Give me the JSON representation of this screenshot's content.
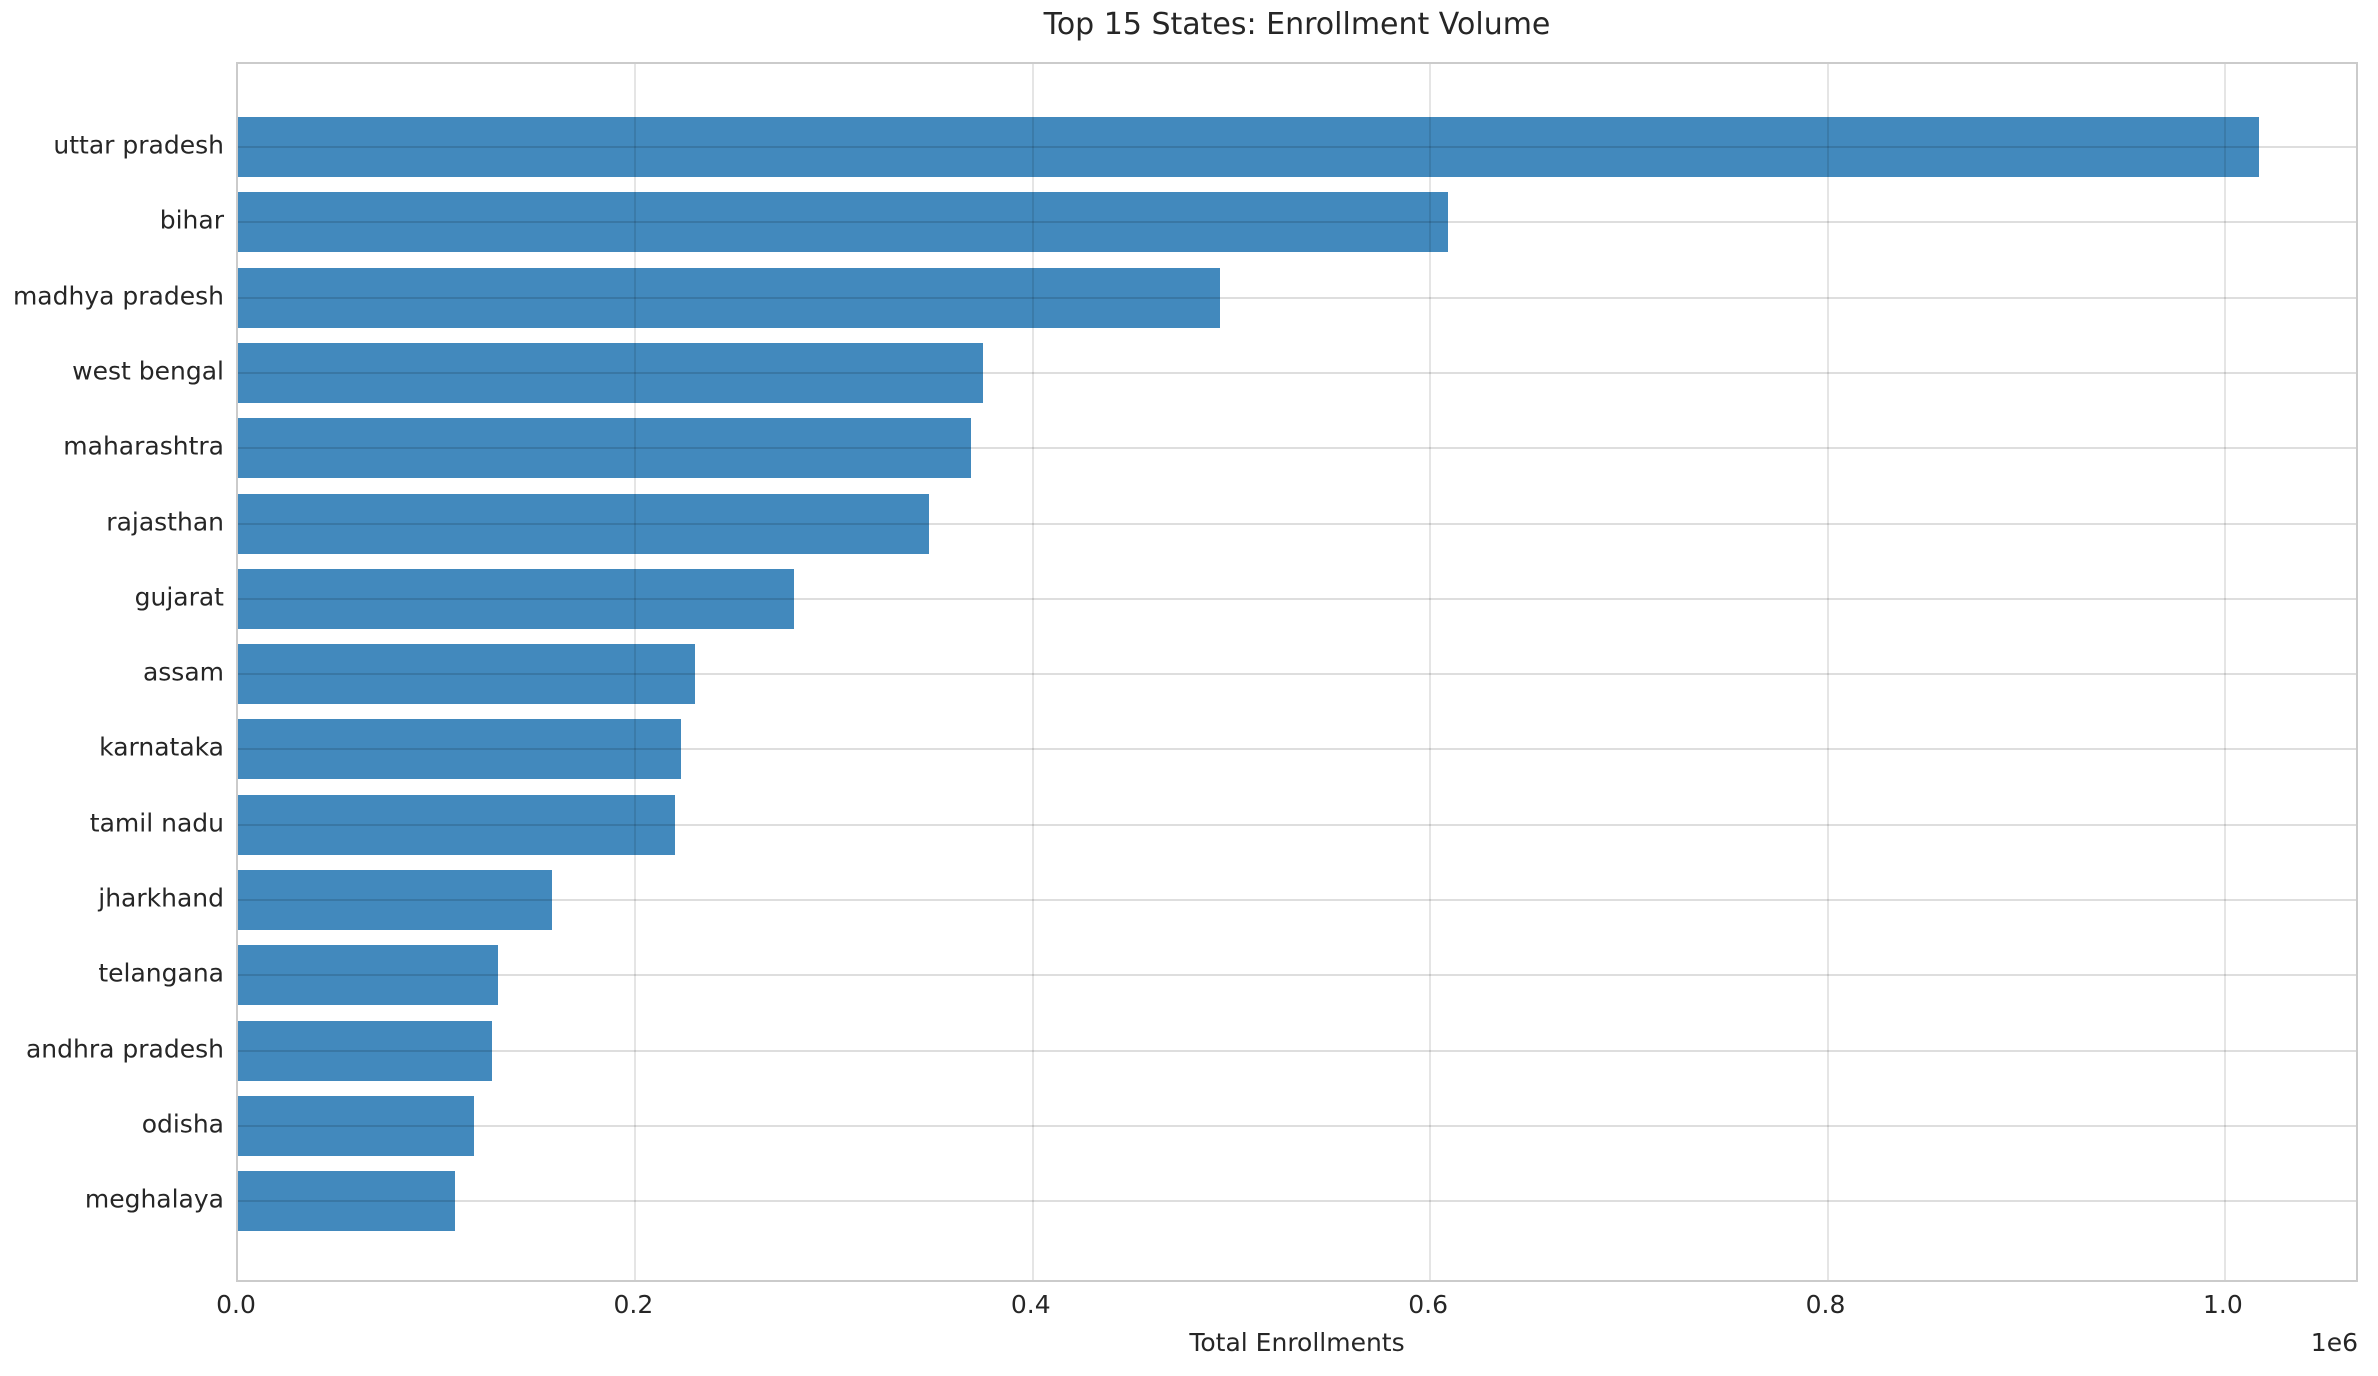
{
  "title": "Top 15 States: Enrollment Volume",
  "xlabel": "Total Enrollments",
  "axis_offset_label": "1e6",
  "colors": {
    "bar": "#4289bd",
    "grid": "#dddddd",
    "spine": "#cbcbcb",
    "text": "#262626",
    "background": "#ffffff"
  },
  "chart_data": {
    "type": "bar",
    "orientation": "horizontal",
    "title": "Top 15 States: Enrollment Volume",
    "xlabel": "Total Enrollments",
    "ylabel": "",
    "categories": [
      "uttar pradesh",
      "bihar",
      "madhya pradesh",
      "west bengal",
      "maharashtra",
      "rajasthan",
      "gujarat",
      "assam",
      "karnataka",
      "tamil nadu",
      "jharkhand",
      "telangana",
      "andhra pradesh",
      "odisha",
      "meghalaya"
    ],
    "values": [
      1017000,
      609000,
      494000,
      375000,
      369000,
      348000,
      280000,
      230000,
      223000,
      220000,
      158000,
      131000,
      128000,
      119000,
      109000
    ],
    "xlim": [
      0,
      1068000
    ],
    "xticks_1e6": [
      0.0,
      0.2,
      0.4,
      0.6,
      0.8,
      1.0
    ],
    "xtick_labels": [
      "0.0",
      "0.2",
      "0.4",
      "0.6",
      "0.8",
      "1.0"
    ],
    "unit_multiplier_label": "1e6",
    "grid": true,
    "legend": false,
    "bar_color": "#4289bd"
  }
}
